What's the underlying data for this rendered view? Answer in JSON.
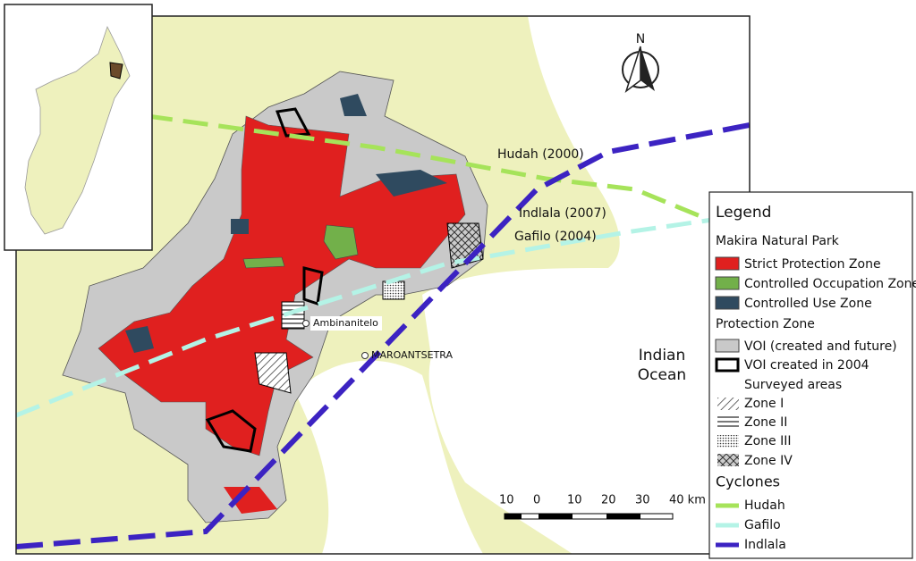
{
  "map": {
    "north": "N",
    "cyclone_labels": [
      "Hudah (2000)",
      "Indlala (2007)",
      "Gafilo (2004)"
    ],
    "places": [
      "Ambinanitelo",
      "MAROANTSETRA"
    ],
    "ocean": [
      "Indian",
      "Ocean"
    ],
    "scale_labels": [
      "10",
      "0",
      "10",
      "20",
      "30",
      "40 km"
    ]
  },
  "legend": {
    "title": "Legend",
    "park_heading": "Makira Natural Park",
    "park_items": [
      "Strict Protection Zone",
      "Controlled Occupation Zone",
      "Controlled Use Zone"
    ],
    "protection_heading": "Protection Zone",
    "protection_items": [
      "VOI (created and future)",
      "VOI created in 2004"
    ],
    "survey_heading": "Surveyed areas",
    "survey_items": [
      "Zone I",
      "Zone II",
      "Zone III",
      "Zone IV"
    ],
    "cyclones_heading": "Cyclones",
    "cyclone_items": [
      "Hudah",
      "Gafilo",
      "Indlala"
    ]
  }
}
